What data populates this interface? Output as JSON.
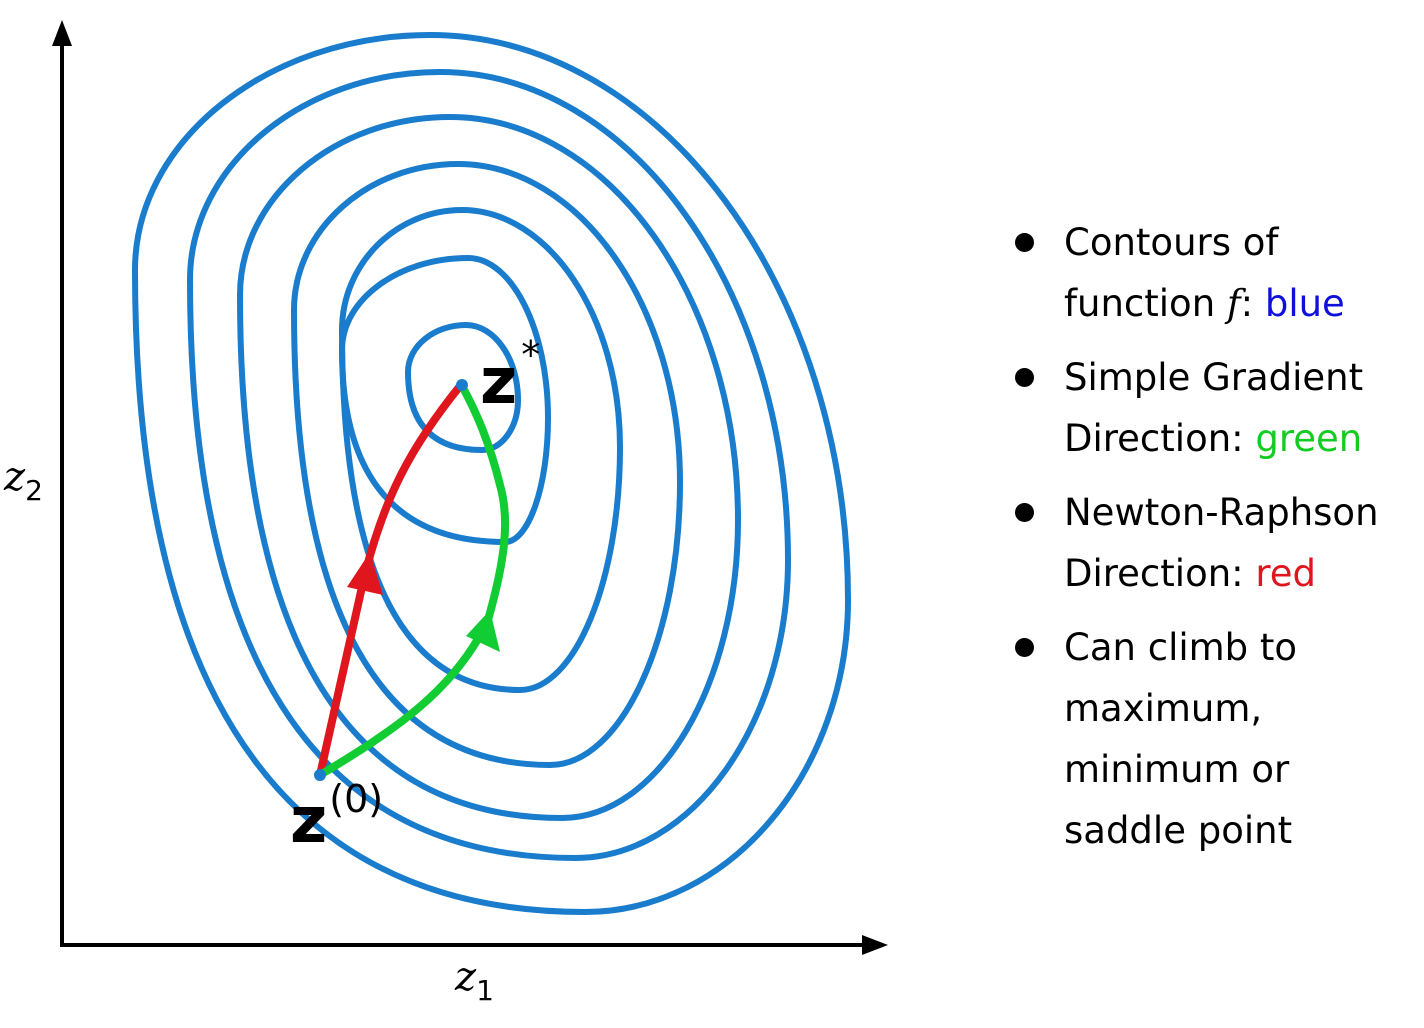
{
  "diagram": {
    "x_axis": {
      "symbol": "z",
      "subscript": "1"
    },
    "y_axis": {
      "symbol": "z",
      "subscript": "2"
    },
    "optimum": {
      "symbol": "z",
      "superscript": "*"
    },
    "start": {
      "symbol": "z",
      "superscript": "(0)"
    },
    "colors": {
      "contours": "#1a7ccc",
      "gradient_path": "#12cc33",
      "newton_path": "#e0161f",
      "axes": "#000000"
    }
  },
  "legend": {
    "items": [
      {
        "line1": "Contours of",
        "line2_prefix": "function ",
        "line2_var": "f",
        "line2_sep": ": ",
        "colored": "blue"
      },
      {
        "line1": "Simple Gradient",
        "line2_prefix": "Direction: ",
        "colored": "green"
      },
      {
        "line1": "Newton-Raphson",
        "line2_prefix": "Direction: ",
        "colored": "red"
      },
      {
        "lines": [
          "Can climb to",
          "maximum,",
          "minimum or",
          "saddle point"
        ]
      }
    ]
  }
}
